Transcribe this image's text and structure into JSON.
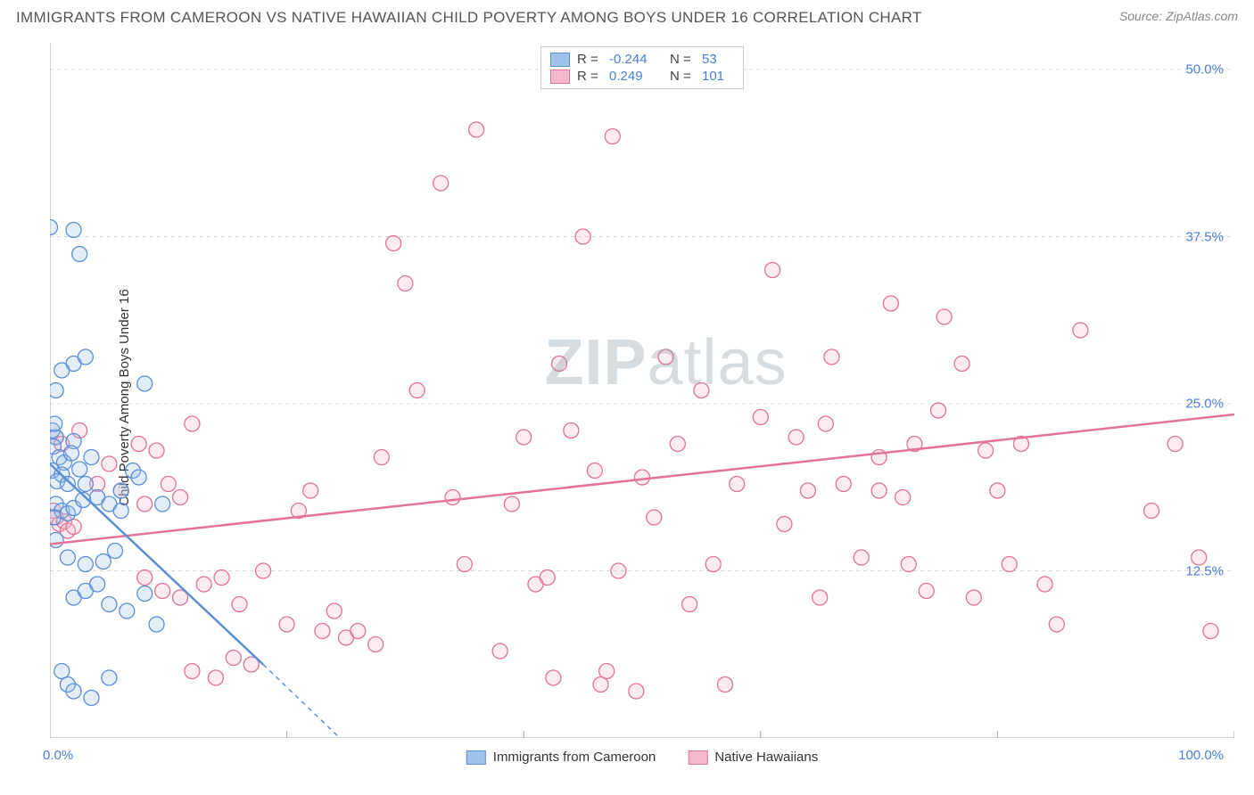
{
  "title": "IMMIGRANTS FROM CAMEROON VS NATIVE HAWAIIAN CHILD POVERTY AMONG BOYS UNDER 16 CORRELATION CHART",
  "source": "Source: ZipAtlas.com",
  "watermark_bold": "ZIP",
  "watermark_light": "atlas",
  "chart": {
    "type": "scatter",
    "y_axis_label": "Child Poverty Among Boys Under 16",
    "xlim": [
      0,
      100
    ],
    "ylim": [
      0,
      52
    ],
    "x_ticks": [
      0,
      20,
      40,
      60,
      80,
      100
    ],
    "x_tick_labels": [
      "0.0%",
      "",
      "",
      "",
      "",
      "100.0%"
    ],
    "y_ticks": [
      12.5,
      25.0,
      37.5,
      50.0
    ],
    "y_tick_labels": [
      "12.5%",
      "25.0%",
      "37.5%",
      "50.0%"
    ],
    "grid_color": "#d8d8d8",
    "axis_color": "#aaaaaa",
    "background_color": "#ffffff",
    "marker_radius": 8.5,
    "marker_stroke_width": 1.3,
    "marker_fill_opacity": 0.28,
    "series": [
      {
        "name": "Immigrants from Cameroon",
        "color_stroke": "#5a8fd6",
        "color_fill": "#9fc2ea",
        "R": "-0.244",
        "N": "53",
        "trend": {
          "x1": 0,
          "y1": 20.5,
          "x2": 18,
          "y2": 5.5,
          "x2_dash": 28,
          "y2_dash": -3
        },
        "points": [
          [
            0,
            38.2
          ],
          [
            2,
            38.0
          ],
          [
            2.5,
            36.2
          ],
          [
            0.5,
            22.5
          ],
          [
            0.3,
            21.8
          ],
          [
            0.8,
            21.0
          ],
          [
            1.2,
            20.6
          ],
          [
            0.2,
            20.0
          ],
          [
            1.0,
            19.7
          ],
          [
            0.6,
            19.2
          ],
          [
            1.5,
            19.0
          ],
          [
            0.2,
            23.0
          ],
          [
            0.4,
            23.5
          ],
          [
            2.0,
            22.2
          ],
          [
            1.8,
            21.3
          ],
          [
            2.5,
            20.1
          ],
          [
            3.0,
            19.0
          ],
          [
            3.5,
            21.0
          ],
          [
            0.5,
            17.5
          ],
          [
            1.0,
            17.0
          ],
          [
            0.3,
            16.5
          ],
          [
            1.5,
            16.8
          ],
          [
            2.0,
            17.2
          ],
          [
            2.8,
            17.8
          ],
          [
            0.5,
            14.8
          ],
          [
            1.5,
            13.5
          ],
          [
            3.0,
            13.0
          ],
          [
            4.5,
            13.2
          ],
          [
            5.5,
            14.0
          ],
          [
            6.0,
            18.5
          ],
          [
            7.0,
            20.0
          ],
          [
            8.0,
            26.5
          ],
          [
            9.5,
            17.5
          ],
          [
            2.0,
            10.5
          ],
          [
            3.0,
            11.0
          ],
          [
            4.0,
            11.5
          ],
          [
            5.0,
            10.0
          ],
          [
            6.5,
            9.5
          ],
          [
            8.0,
            10.8
          ],
          [
            9.0,
            8.5
          ],
          [
            1.0,
            5.0
          ],
          [
            1.5,
            4.0
          ],
          [
            2.0,
            3.5
          ],
          [
            3.5,
            3.0
          ],
          [
            5.0,
            4.5
          ],
          [
            2.0,
            28.0
          ],
          [
            3.0,
            28.5
          ],
          [
            1.0,
            27.5
          ],
          [
            0.5,
            26.0
          ],
          [
            4.0,
            18.0
          ],
          [
            5.0,
            17.5
          ],
          [
            6.0,
            17.0
          ],
          [
            7.5,
            19.5
          ]
        ]
      },
      {
        "name": "Native Hawaiians",
        "color_stroke": "#e27396",
        "color_fill": "#f4b8ca",
        "R": "0.249",
        "N": "101",
        "trend": {
          "x1": 0,
          "y1": 14.5,
          "x2": 100,
          "y2": 24.2
        },
        "points": [
          [
            0.3,
            17.0
          ],
          [
            0.5,
            16.5
          ],
          [
            0.8,
            16.0
          ],
          [
            1.2,
            16.2
          ],
          [
            1.5,
            15.5
          ],
          [
            2.0,
            15.8
          ],
          [
            0.5,
            22.5
          ],
          [
            1.0,
            22.0
          ],
          [
            2.5,
            23.0
          ],
          [
            4.0,
            19.0
          ],
          [
            5.0,
            20.5
          ],
          [
            6.0,
            18.5
          ],
          [
            7.5,
            22.0
          ],
          [
            8.0,
            17.5
          ],
          [
            9.0,
            21.5
          ],
          [
            10.0,
            19.0
          ],
          [
            11.0,
            18.0
          ],
          [
            12.0,
            23.5
          ],
          [
            8.0,
            12.0
          ],
          [
            9.5,
            11.0
          ],
          [
            11.0,
            10.5
          ],
          [
            13.0,
            11.5
          ],
          [
            14.5,
            12.0
          ],
          [
            16.0,
            10.0
          ],
          [
            18.0,
            12.5
          ],
          [
            12.0,
            5.0
          ],
          [
            14.0,
            4.5
          ],
          [
            15.5,
            6.0
          ],
          [
            17.0,
            5.5
          ],
          [
            20.0,
            8.5
          ],
          [
            21.0,
            17.0
          ],
          [
            22.0,
            18.5
          ],
          [
            23.0,
            8.0
          ],
          [
            24.0,
            9.5
          ],
          [
            25.0,
            7.5
          ],
          [
            26.0,
            8.0
          ],
          [
            27.5,
            7.0
          ],
          [
            28.0,
            21.0
          ],
          [
            29.0,
            37.0
          ],
          [
            30.0,
            34.0
          ],
          [
            31.0,
            26.0
          ],
          [
            33.0,
            41.5
          ],
          [
            34.0,
            18.0
          ],
          [
            35.0,
            13.0
          ],
          [
            36.0,
            45.5
          ],
          [
            38.0,
            6.5
          ],
          [
            39.0,
            17.5
          ],
          [
            40.0,
            22.5
          ],
          [
            41.0,
            11.5
          ],
          [
            42.0,
            12.0
          ],
          [
            42.5,
            4.5
          ],
          [
            43.0,
            28.0
          ],
          [
            44.0,
            23.0
          ],
          [
            45.0,
            37.5
          ],
          [
            46.0,
            20.0
          ],
          [
            47.0,
            5.0
          ],
          [
            47.5,
            45.0
          ],
          [
            48.0,
            12.5
          ],
          [
            49.5,
            3.5
          ],
          [
            50.0,
            19.5
          ],
          [
            51.0,
            16.5
          ],
          [
            52.0,
            28.5
          ],
          [
            53.0,
            22.0
          ],
          [
            54.0,
            10.0
          ],
          [
            55.0,
            26.0
          ],
          [
            56.0,
            13.0
          ],
          [
            57.0,
            4.0
          ],
          [
            58.0,
            19.0
          ],
          [
            60.0,
            24.0
          ],
          [
            61.0,
            35.0
          ],
          [
            62.0,
            16.0
          ],
          [
            63.0,
            22.5
          ],
          [
            64.0,
            18.5
          ],
          [
            65.0,
            10.5
          ],
          [
            65.5,
            23.5
          ],
          [
            66.0,
            28.5
          ],
          [
            67.0,
            19.0
          ],
          [
            68.5,
            13.5
          ],
          [
            70.0,
            21.0
          ],
          [
            71.0,
            32.5
          ],
          [
            72.0,
            18.0
          ],
          [
            73.0,
            22.0
          ],
          [
            74.0,
            11.0
          ],
          [
            75.0,
            24.5
          ],
          [
            75.5,
            31.5
          ],
          [
            77.0,
            28.0
          ],
          [
            78.0,
            10.5
          ],
          [
            79.0,
            21.5
          ],
          [
            80.0,
            18.5
          ],
          [
            81.0,
            13.0
          ],
          [
            82.0,
            22.0
          ],
          [
            84.0,
            11.5
          ],
          [
            85.0,
            8.5
          ],
          [
            87.0,
            30.5
          ],
          [
            93.0,
            17.0
          ],
          [
            95.0,
            22.0
          ],
          [
            97.0,
            13.5
          ],
          [
            98.0,
            8.0
          ],
          [
            70.0,
            18.5
          ],
          [
            72.5,
            13.0
          ],
          [
            46.5,
            4.0
          ]
        ]
      }
    ]
  },
  "legend_bottom": [
    {
      "label": "Immigrants from Cameroon",
      "fill": "#9fc2ea",
      "stroke": "#5a8fd6"
    },
    {
      "label": "Native Hawaiians",
      "fill": "#f4b8ca",
      "stroke": "#e27396"
    }
  ]
}
